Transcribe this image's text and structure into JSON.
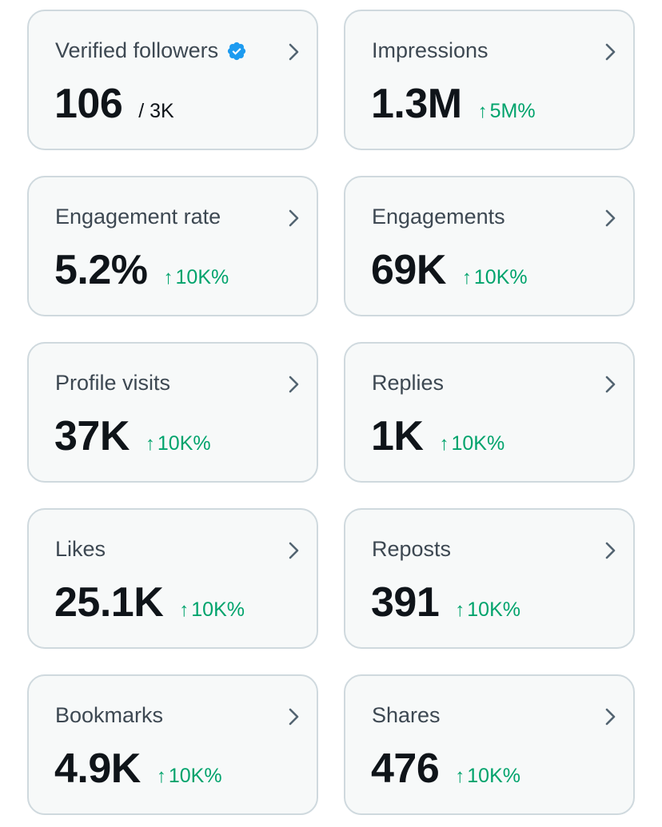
{
  "colors": {
    "card_background": "#f7f9f9",
    "card_border": "#cfd9de",
    "label": "#3d4852",
    "value": "#0f1419",
    "positive_change": "#00a36c",
    "verified_badge": "#1d9bf0"
  },
  "icons": {
    "chevron": "chevron-right-icon",
    "verified": "verified-badge-icon",
    "change_arrow": "↑"
  },
  "cards": [
    {
      "key": "verified-followers",
      "title": "Verified followers",
      "value": "106",
      "sub": "/ 3K",
      "verified": true
    },
    {
      "key": "impressions",
      "title": "Impressions",
      "value": "1.3M",
      "change": "5M%"
    },
    {
      "key": "engagement-rate",
      "title": "Engagement rate",
      "value": "5.2%",
      "change": "10K%"
    },
    {
      "key": "engagements",
      "title": "Engagements",
      "value": "69K",
      "change": "10K%"
    },
    {
      "key": "profile-visits",
      "title": "Profile visits",
      "value": "37K",
      "change": "10K%"
    },
    {
      "key": "replies",
      "title": "Replies",
      "value": "1K",
      "change": "10K%"
    },
    {
      "key": "likes",
      "title": "Likes",
      "value": "25.1K",
      "change": "10K%"
    },
    {
      "key": "reposts",
      "title": "Reposts",
      "value": "391",
      "change": "10K%"
    },
    {
      "key": "bookmarks",
      "title": "Bookmarks",
      "value": "4.9K",
      "change": "10K%"
    },
    {
      "key": "shares",
      "title": "Shares",
      "value": "476",
      "change": "10K%"
    }
  ]
}
